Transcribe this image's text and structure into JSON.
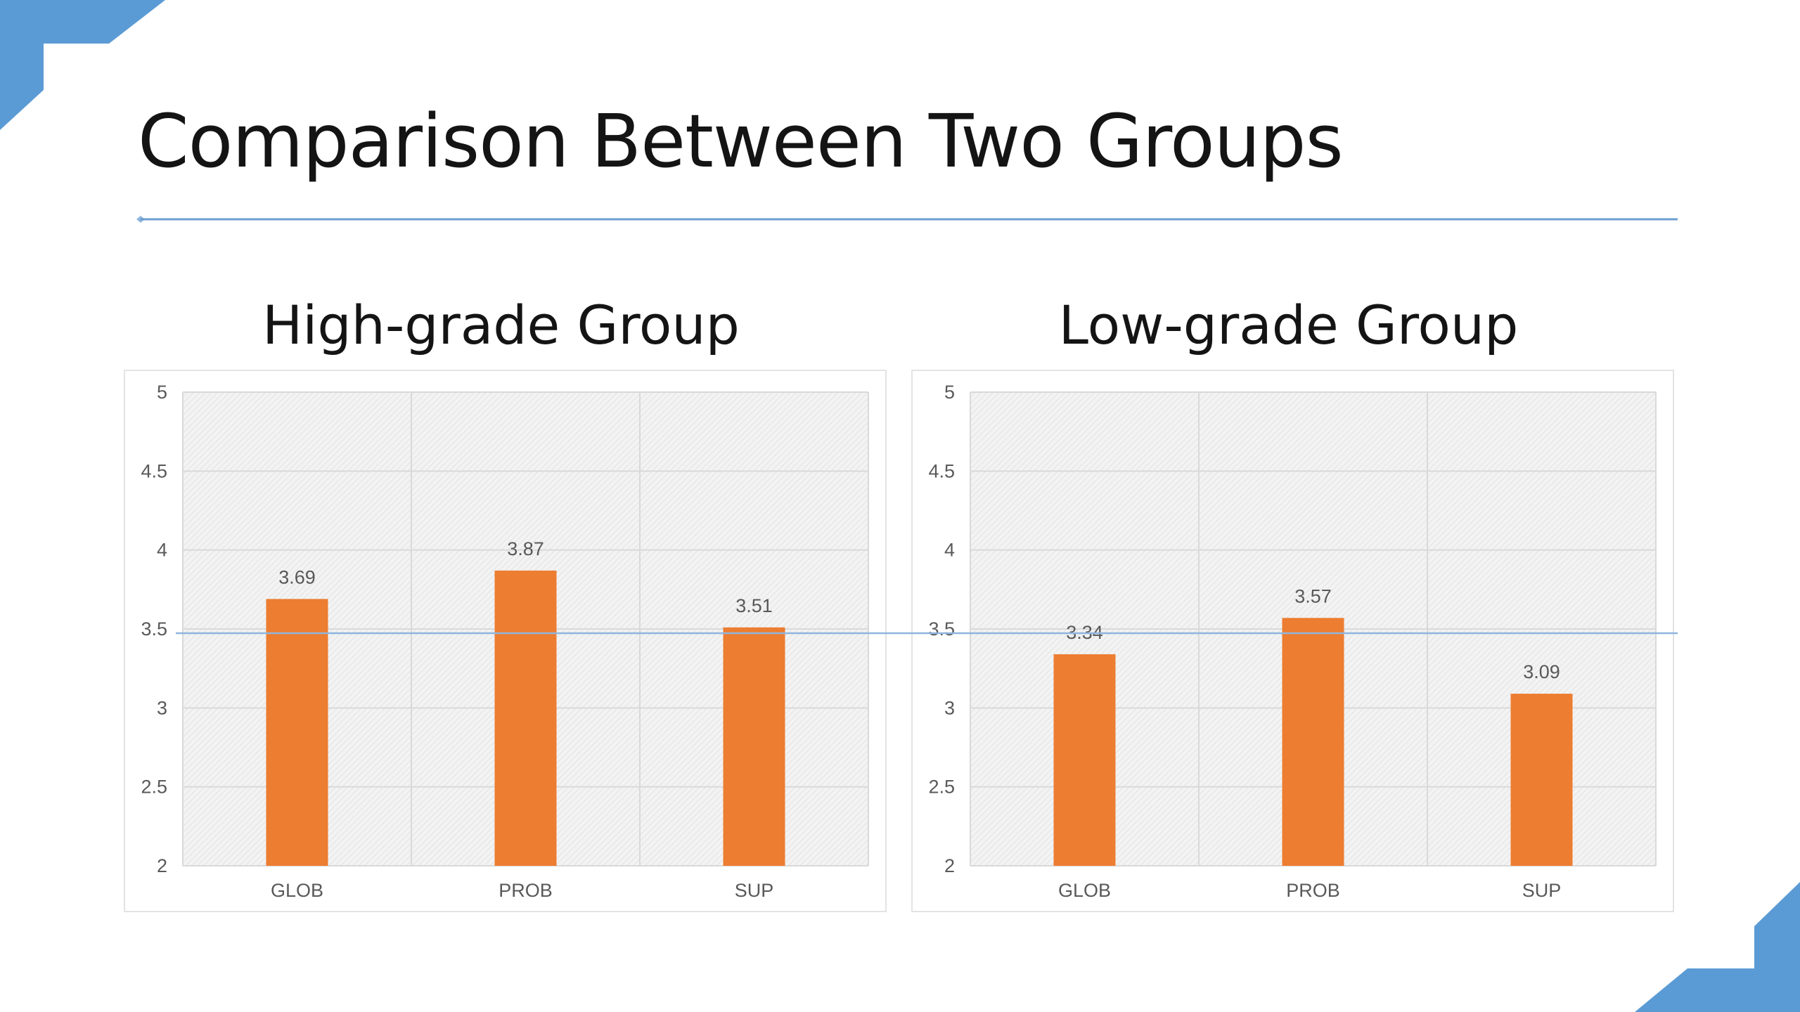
{
  "slide": {
    "title": "Comparison Between Two Groups"
  },
  "colors": {
    "bar": "#ED7D31",
    "accent": "#5B9BD5",
    "rule": "#6C9FCF",
    "grid": "#D9D9D9",
    "tick_text": "#595959"
  },
  "chart_data": [
    {
      "type": "bar",
      "title": "High-grade Group",
      "categories": [
        "GLOB",
        "PROB",
        "SUP"
      ],
      "values": [
        3.69,
        3.87,
        3.51
      ],
      "data_labels": [
        "3.69",
        "3.87",
        "3.51"
      ],
      "ylim": [
        2,
        5
      ],
      "yticks": [
        "5",
        "4.5",
        "4",
        "3.5",
        "3",
        "2.5",
        "2"
      ],
      "ytick_values": [
        5,
        4.5,
        4,
        3.5,
        3,
        2.5,
        2
      ],
      "grid": true,
      "reference_line": 3.48
    },
    {
      "type": "bar",
      "title": "Low-grade Group",
      "categories": [
        "GLOB",
        "PROB",
        "SUP"
      ],
      "values": [
        3.34,
        3.57,
        3.09
      ],
      "data_labels": [
        "3.34",
        "3.57",
        "3.09"
      ],
      "ylim": [
        2,
        5
      ],
      "yticks": [
        "5",
        "4.5",
        "4",
        "3.5",
        "3",
        "2.5",
        "2"
      ],
      "ytick_values": [
        5,
        4.5,
        4,
        3.5,
        3,
        2.5,
        2
      ],
      "grid": true,
      "reference_line": 3.48
    }
  ]
}
